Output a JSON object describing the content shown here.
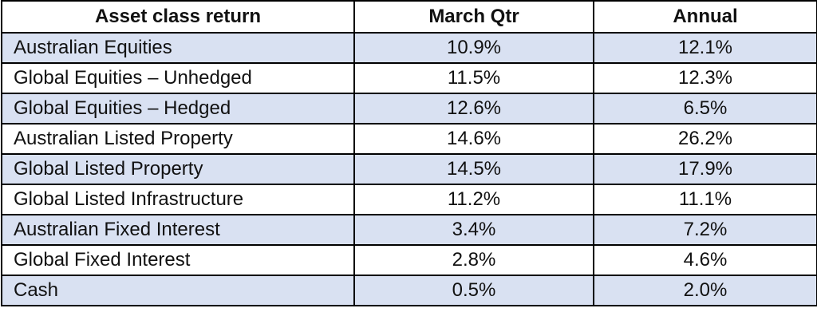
{
  "table": {
    "headers": [
      "Asset class return",
      "March Qtr",
      "Annual"
    ],
    "rows": [
      {
        "asset": "Australian Equities",
        "march_qtr": "10.9%",
        "annual": "12.1%"
      },
      {
        "asset": "Global Equities – Unhedged",
        "march_qtr": "11.5%",
        "annual": "12.3%"
      },
      {
        "asset": "Global Equities – Hedged",
        "march_qtr": "12.6%",
        "annual": "6.5%"
      },
      {
        "asset": "Australian Listed Property",
        "march_qtr": "14.6%",
        "annual": "26.2%"
      },
      {
        "asset": "Global Listed Property",
        "march_qtr": "14.5%",
        "annual": "17.9%"
      },
      {
        "asset": "Global Listed Infrastructure",
        "march_qtr": "11.2%",
        "annual": "11.1%"
      },
      {
        "asset": "Australian Fixed Interest",
        "march_qtr": "3.4%",
        "annual": "7.2%"
      },
      {
        "asset": "Global Fixed Interest",
        "march_qtr": "2.8%",
        "annual": "4.6%"
      },
      {
        "asset": "Cash",
        "march_qtr": "0.5%",
        "annual": "2.0%"
      }
    ]
  },
  "colors": {
    "shaded_row": "#d9e1f2",
    "plain_row": "#ffffff",
    "border": "#000000"
  }
}
